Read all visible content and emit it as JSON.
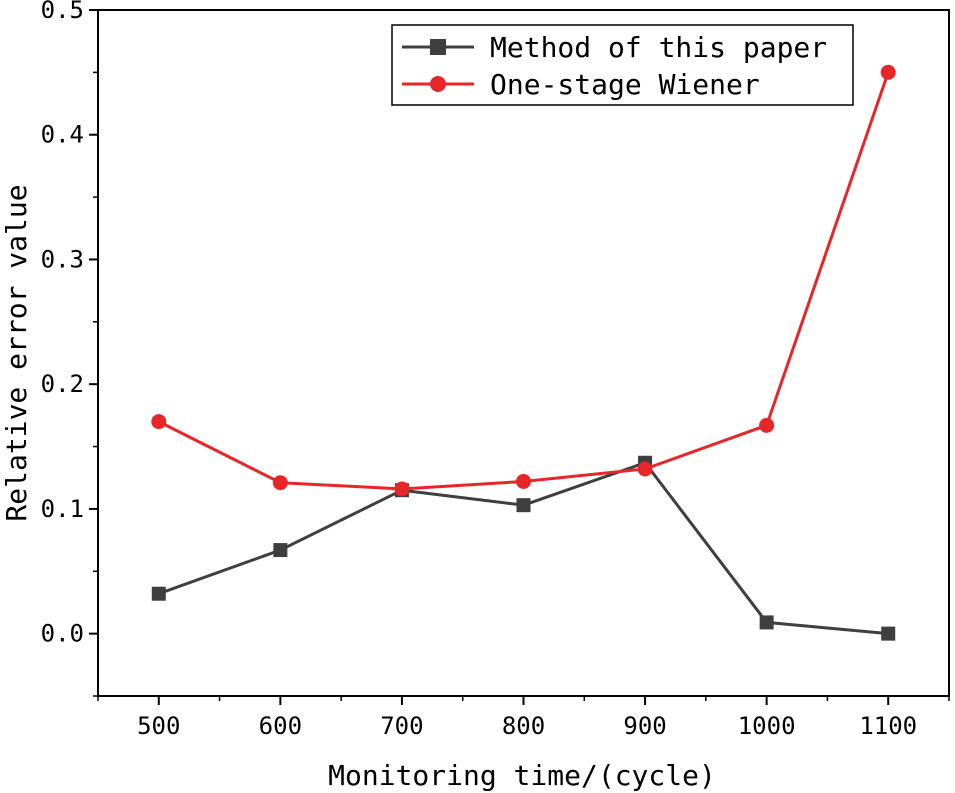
{
  "chart_data": {
    "type": "line",
    "title": "",
    "xlabel": "Monitoring time/(cycle)",
    "ylabel": "Relative error value",
    "categories": [
      500,
      600,
      700,
      800,
      900,
      1000,
      1100
    ],
    "xlim": [
      450,
      1150
    ],
    "ylim": [
      -0.05,
      0.5
    ],
    "yticks": [
      0.0,
      0.1,
      0.2,
      0.3,
      0.4,
      0.5
    ],
    "ytick_labels": [
      "0.0",
      "0.1",
      "0.2",
      "0.3",
      "0.4",
      "0.5"
    ],
    "xtick_labels": [
      "500",
      "600",
      "700",
      "800",
      "900",
      "1000",
      "1100"
    ],
    "legend_position": "top-right",
    "grid": false,
    "series": [
      {
        "name": "Method of this paper",
        "marker": "square",
        "color": "#3f3f3f",
        "values": [
          0.032,
          0.067,
          0.115,
          0.103,
          0.137,
          0.009,
          0.0
        ]
      },
      {
        "name": "One-stage Wiener",
        "marker": "circle",
        "color": "#e8262a",
        "values": [
          0.17,
          0.121,
          0.116,
          0.122,
          0.132,
          0.167,
          0.45
        ]
      }
    ]
  }
}
